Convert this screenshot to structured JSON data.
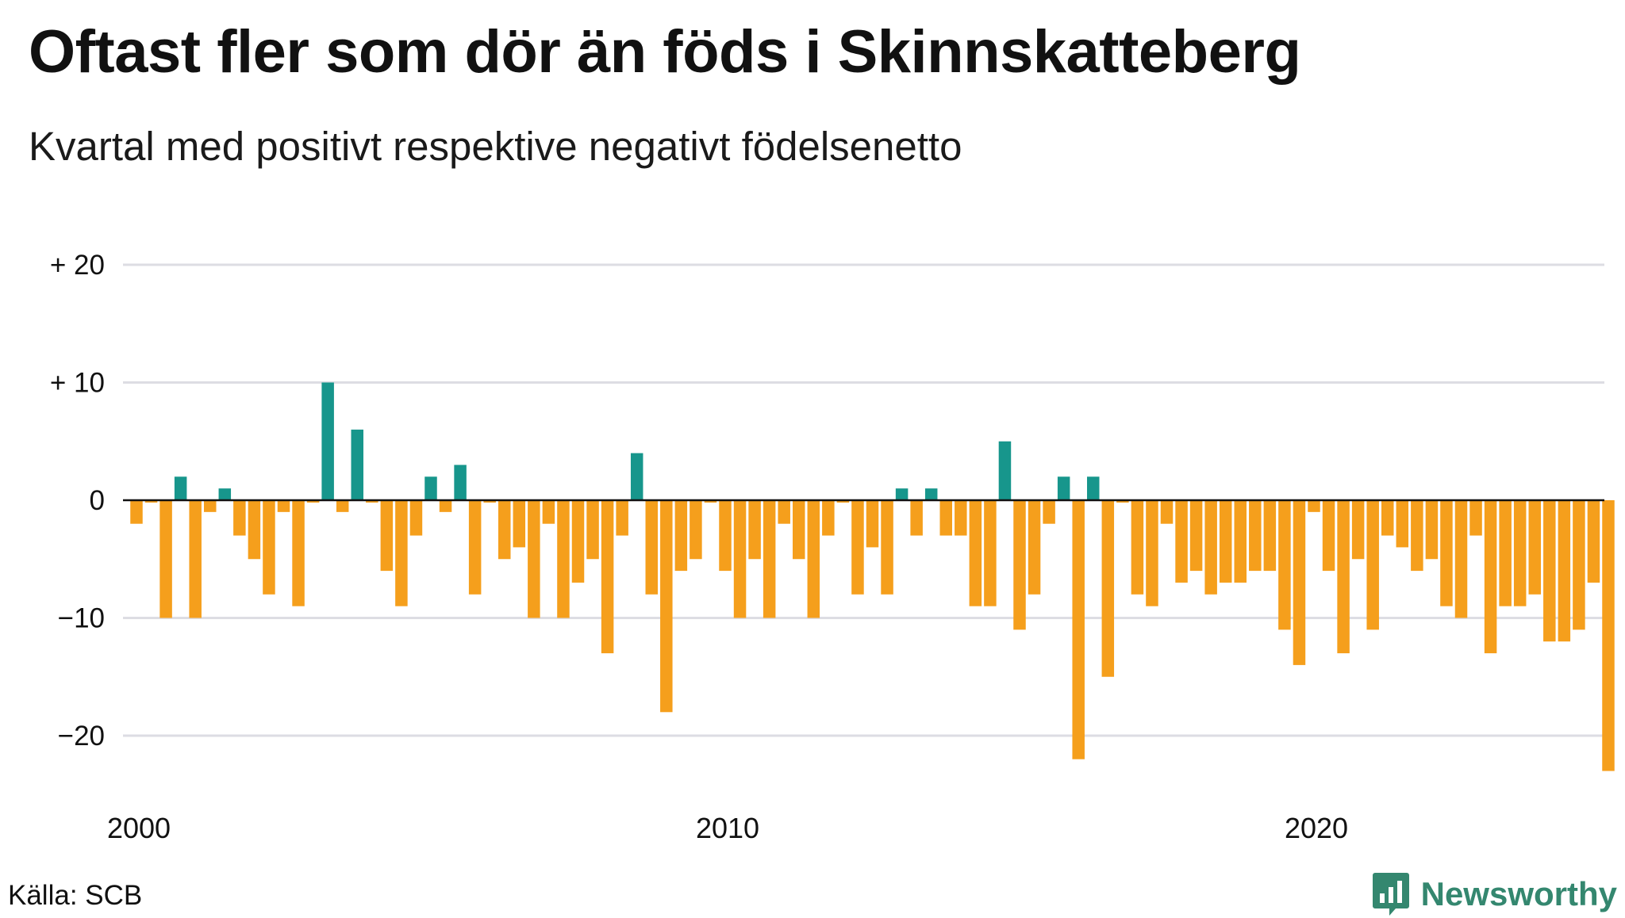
{
  "title": "Oftast fler som dör än föds i Skinnskatteberg",
  "subtitle": "Kvartal med positivt respektive negativt födelsenetto",
  "source": "Källa: SCB",
  "brand": "Newsworthy",
  "colors": {
    "positive": "#17968c",
    "negative": "#f59f1c",
    "grid": "#dddde3",
    "zero_line": "#111111",
    "brand": "#34876f"
  },
  "chart_data": {
    "type": "bar",
    "y_ticks": [
      {
        "value": 20,
        "label": "+ 20"
      },
      {
        "value": 10,
        "label": "+ 10"
      },
      {
        "value": 0,
        "label": "0"
      },
      {
        "value": -10,
        "label": "−10"
      },
      {
        "value": -20,
        "label": "−20"
      }
    ],
    "x_ticks": [
      {
        "value": 2000,
        "label": "2000"
      },
      {
        "value": 2010,
        "label": "2010"
      },
      {
        "value": 2020,
        "label": "2020"
      }
    ],
    "x_start": 2000,
    "quarters_per_year": 4,
    "ylim": [
      -25,
      22
    ],
    "grid": true,
    "values": [
      -2,
      -0.2,
      -10,
      2,
      -10,
      -1,
      1,
      -3,
      -5,
      -8,
      -1,
      -9,
      -0.2,
      10,
      -1,
      6,
      -0.2,
      -6,
      -9,
      -3,
      2,
      -1,
      3,
      -8,
      -0.2,
      -5,
      -4,
      -10,
      -2,
      -10,
      -7,
      -5,
      -13,
      -3,
      4,
      -8,
      -18,
      -6,
      -5,
      -0.2,
      -6,
      -10,
      -5,
      -10,
      -2,
      -5,
      -10,
      -3,
      -0.2,
      -8,
      -4,
      -8,
      1,
      -3,
      1,
      -3,
      -3,
      -9,
      -9,
      5,
      -11,
      -8,
      -2,
      2,
      -22,
      2,
      -15,
      -0.2,
      -8,
      -9,
      -2,
      -7,
      -6,
      -8,
      -7,
      -7,
      -6,
      -6,
      -11,
      -14,
      -1,
      -6,
      -13,
      -5,
      -11,
      -3,
      -4,
      -6,
      -5,
      -9,
      -10,
      -3,
      -13,
      -9,
      -9,
      -8,
      -12,
      -12,
      -11,
      -7,
      -23
    ]
  }
}
